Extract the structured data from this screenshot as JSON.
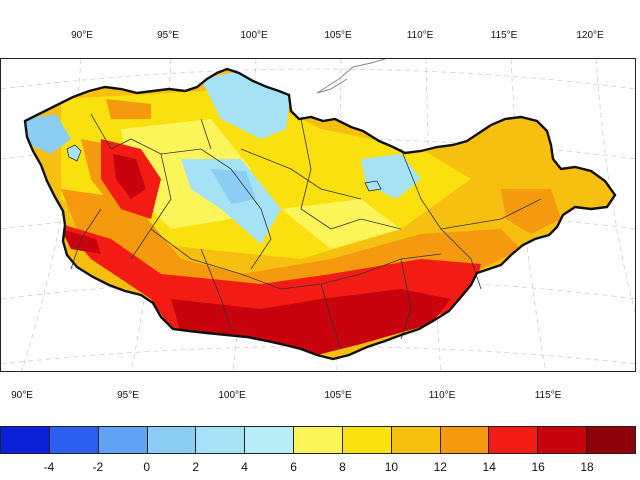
{
  "map": {
    "top_lon_labels": [
      "90°E",
      "95°E",
      "100°E",
      "105°E",
      "110°E",
      "115°E",
      "120°E"
    ],
    "bottom_lon_labels": [
      "90°E",
      "95°E",
      "100°E",
      "105°E",
      "110°E",
      "115°E"
    ]
  },
  "colorbar": {
    "colors": [
      "#0a1fd6",
      "#2c5ff0",
      "#5fa3f2",
      "#8ccdf3",
      "#a6e2f5",
      "#b8ecf6",
      "#fbf55a",
      "#fbe010",
      "#f7bf10",
      "#f59a0e",
      "#f21c14",
      "#c8030e",
      "#8e0009"
    ],
    "labels": [
      "-4",
      "-2",
      "0",
      "2",
      "4",
      "6",
      "8",
      "10",
      "12",
      "14",
      "16",
      "18"
    ]
  }
}
